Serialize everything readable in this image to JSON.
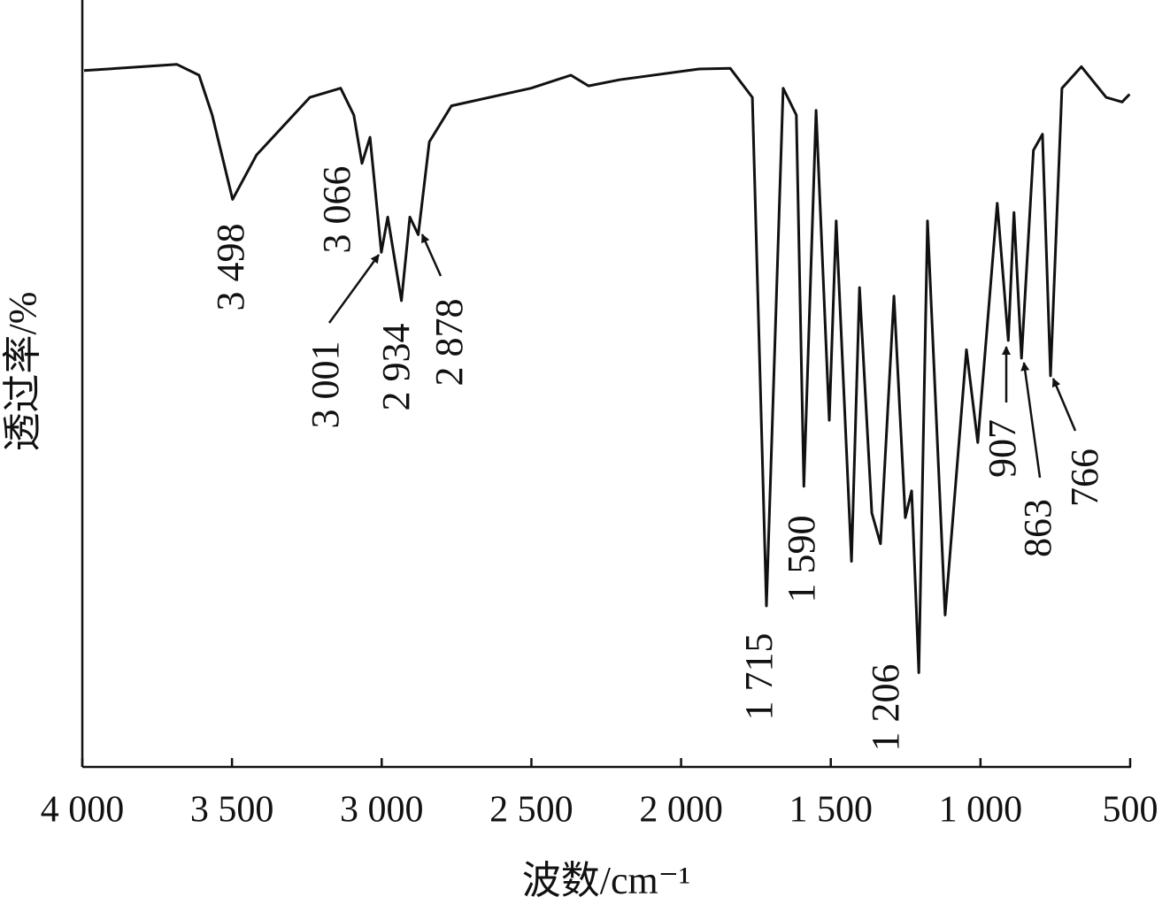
{
  "chart_data": {
    "type": "line",
    "x_label": "波数/cm⁻¹",
    "y_label": "透过率/%",
    "xlim": [
      4000,
      500
    ],
    "ylim": [
      0,
      100
    ],
    "xticks": [
      {
        "value": 4000,
        "label": "4 000"
      },
      {
        "value": 3500,
        "label": "3 500"
      },
      {
        "value": 3000,
        "label": "3 000"
      },
      {
        "value": 2500,
        "label": "2 500"
      },
      {
        "value": 2000,
        "label": "2 000"
      },
      {
        "value": 1500,
        "label": "1 500"
      },
      {
        "value": 1000,
        "label": "1 000"
      },
      500
    ],
    "color": "#111111",
    "x": [
      3994,
      3684,
      3610,
      3566,
      3498,
      3418,
      3240,
      3137,
      3093,
      3066,
      3039,
      3001,
      2980,
      2934,
      2906,
      2878,
      2841,
      2767,
      2501,
      2368,
      2309,
      2206,
      1940,
      1836,
      1762,
      1715,
      1659,
      1615,
      1590,
      1549,
      1505,
      1482,
      1431,
      1404,
      1363,
      1334,
      1289,
      1251,
      1230,
      1206,
      1177,
      1118,
      1047,
      1009,
      944,
      907,
      888,
      863,
      823,
      793,
      766,
      728,
      663,
      580,
      527,
      502
    ],
    "y": [
      90.8,
      91.6,
      90.2,
      85.0,
      74.0,
      79.8,
      87.3,
      88.5,
      85.0,
      78.7,
      82.1,
      67.1,
      71.7,
      60.8,
      71.7,
      69.4,
      81.5,
      86.2,
      88.5,
      90.2,
      88.8,
      89.6,
      91.0,
      91.1,
      87.3,
      21.0,
      88.5,
      85.0,
      36.6,
      85.6,
      45.2,
      71.2,
      26.8,
      62.5,
      33.1,
      29.1,
      61.4,
      32.5,
      36.0,
      12.3,
      71.2,
      19.8,
      54.4,
      42.3,
      73.5,
      55.6,
      72.3,
      53.3,
      80.4,
      82.5,
      51.0,
      88.5,
      91.3,
      87.3,
      86.7,
      87.7
    ],
    "peak_labels": [
      {
        "value": 3498,
        "label": "3 498"
      },
      {
        "value": 3066,
        "label": "3 066"
      },
      {
        "value": 3001,
        "label": "3 001"
      },
      {
        "value": 2934,
        "label": "2 934"
      },
      {
        "value": 2878,
        "label": "2 878"
      },
      {
        "value": 1715,
        "label": "1 715"
      },
      {
        "value": 1590,
        "label": "1 590"
      },
      {
        "value": 1206,
        "label": "1 206"
      },
      907,
      863,
      766
    ]
  }
}
